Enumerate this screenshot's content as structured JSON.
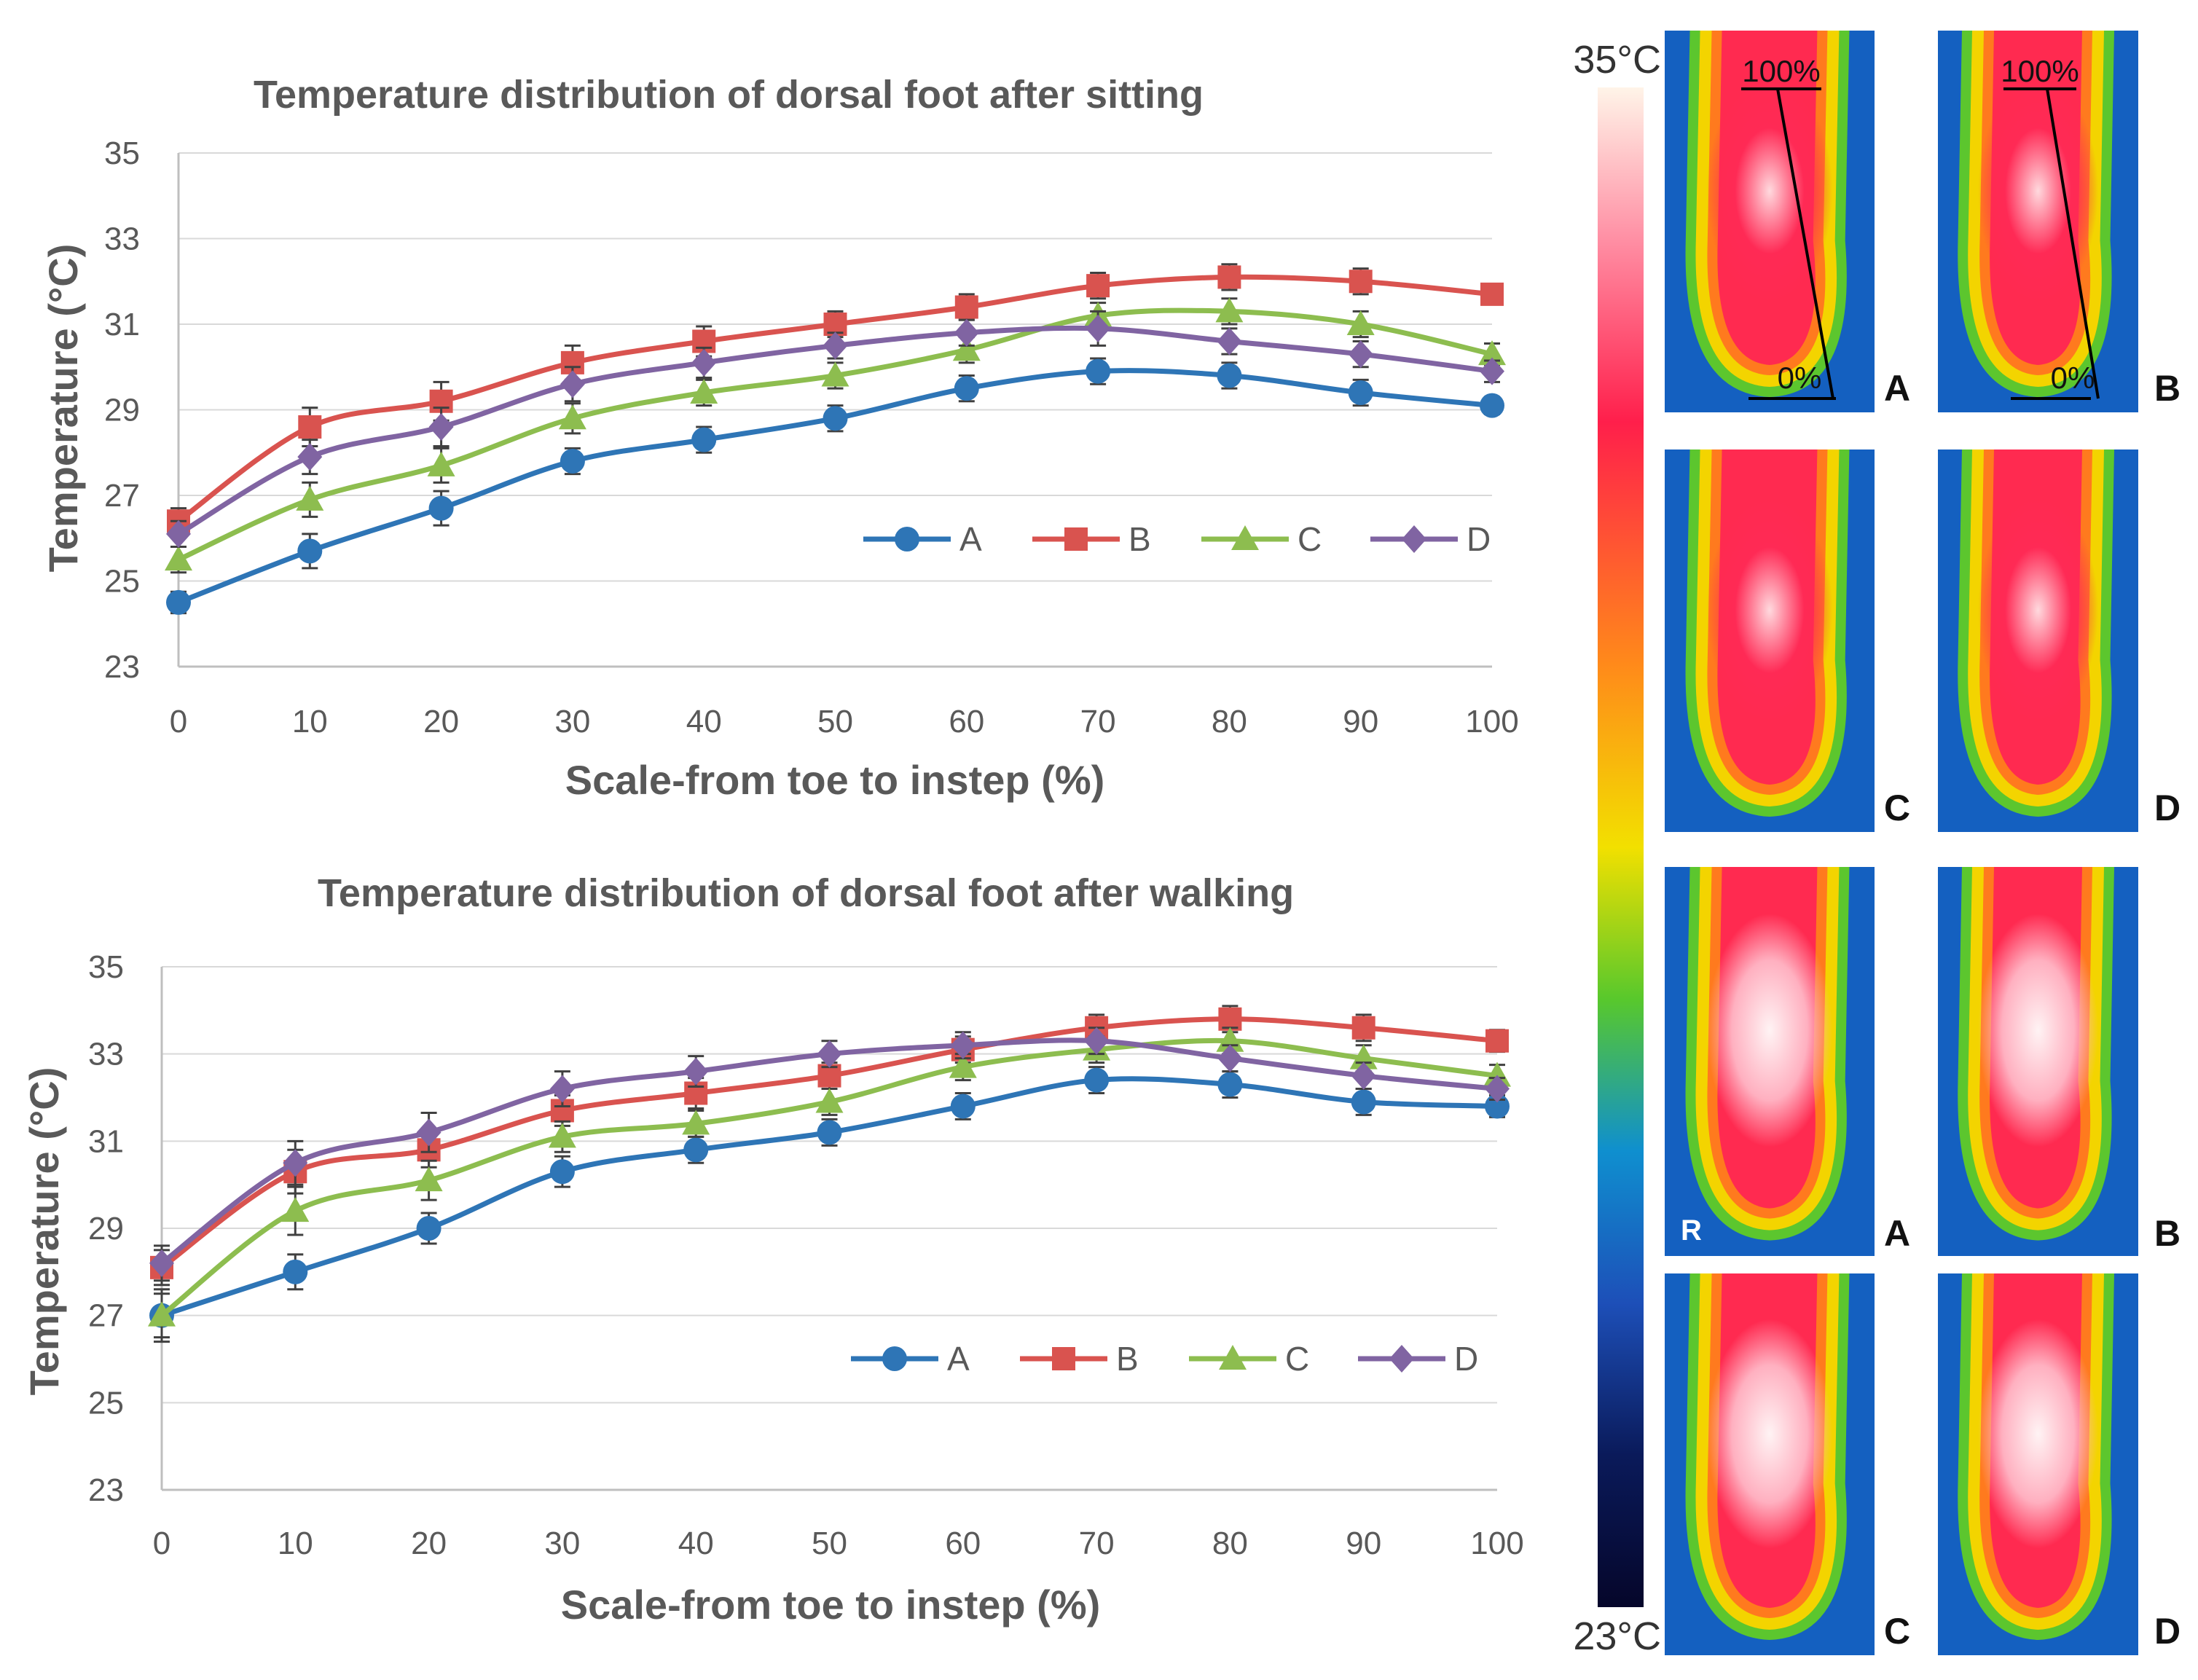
{
  "chart_data": [
    {
      "type": "line",
      "title": "Temperature distribution of dorsal foot after sitting",
      "xlabel": "Scale-from toe to instep (%)",
      "ylabel": "Temperature (°C)",
      "x": [
        0,
        10,
        20,
        30,
        40,
        50,
        60,
        70,
        80,
        90,
        100
      ],
      "xlim": [
        0,
        100
      ],
      "ylim": [
        23,
        35
      ],
      "yticks": [
        23,
        25,
        27,
        29,
        31,
        33,
        35
      ],
      "grid": true,
      "legend_position": "lower-right",
      "series": [
        {
          "name": "A",
          "color": "#2E75B6",
          "marker": "circle",
          "values": [
            24.5,
            25.7,
            26.7,
            27.8,
            28.3,
            28.8,
            29.5,
            29.9,
            29.8,
            29.4,
            29.1
          ],
          "errors": [
            0.25,
            0.4,
            0.4,
            0.3,
            0.3,
            0.3,
            0.3,
            0.3,
            0.3,
            0.3,
            0.2
          ]
        },
        {
          "name": "B",
          "color": "#D9534F",
          "marker": "square",
          "values": [
            26.4,
            28.6,
            29.2,
            30.1,
            30.6,
            31.0,
            31.4,
            31.9,
            32.1,
            32.0,
            31.7
          ],
          "errors": [
            0.3,
            0.45,
            0.45,
            0.4,
            0.35,
            0.3,
            0.3,
            0.3,
            0.3,
            0.3,
            0.2
          ]
        },
        {
          "name": "C",
          "color": "#8DBD4F",
          "marker": "triangle",
          "values": [
            25.5,
            26.9,
            27.7,
            28.8,
            29.4,
            29.8,
            30.4,
            31.2,
            31.3,
            31.0,
            30.3
          ],
          "errors": [
            0.3,
            0.4,
            0.4,
            0.35,
            0.3,
            0.3,
            0.3,
            0.3,
            0.3,
            0.3,
            0.25
          ]
        },
        {
          "name": "D",
          "color": "#8064A2",
          "marker": "diamond",
          "values": [
            26.1,
            27.9,
            28.6,
            29.6,
            30.1,
            30.5,
            30.8,
            30.9,
            30.6,
            30.3,
            29.9
          ],
          "errors": [
            0.3,
            0.4,
            0.45,
            0.4,
            0.35,
            0.3,
            0.3,
            0.4,
            0.3,
            0.3,
            0.25
          ]
        }
      ]
    },
    {
      "type": "line",
      "title": "Temperature distribution of dorsal foot after walking",
      "xlabel": "Scale-from toe to instep (%)",
      "ylabel": "Temperature (°C)",
      "x": [
        0,
        10,
        20,
        30,
        40,
        50,
        60,
        70,
        80,
        90,
        100
      ],
      "xlim": [
        0,
        100
      ],
      "ylim": [
        23,
        35
      ],
      "yticks": [
        23,
        25,
        27,
        29,
        31,
        33,
        35
      ],
      "grid": true,
      "legend_position": "lower-right",
      "series": [
        {
          "name": "A",
          "color": "#2E75B6",
          "marker": "circle",
          "values": [
            27.0,
            28.0,
            29.0,
            30.3,
            30.8,
            31.2,
            31.8,
            32.4,
            32.3,
            31.9,
            31.8
          ],
          "errors": [
            0.6,
            0.4,
            0.35,
            0.35,
            0.3,
            0.3,
            0.3,
            0.3,
            0.3,
            0.3,
            0.25
          ]
        },
        {
          "name": "B",
          "color": "#D9534F",
          "marker": "square",
          "values": [
            28.1,
            30.3,
            30.8,
            31.7,
            32.1,
            32.5,
            33.1,
            33.6,
            33.8,
            33.6,
            33.3
          ],
          "errors": [
            0.4,
            0.5,
            0.4,
            0.35,
            0.35,
            0.3,
            0.3,
            0.3,
            0.3,
            0.3,
            0.25
          ]
        },
        {
          "name": "C",
          "color": "#8DBD4F",
          "marker": "triangle",
          "values": [
            27.0,
            29.4,
            30.1,
            31.1,
            31.4,
            31.9,
            32.7,
            33.1,
            33.3,
            32.9,
            32.5
          ],
          "errors": [
            0.5,
            0.55,
            0.45,
            0.35,
            0.3,
            0.3,
            0.3,
            0.3,
            0.3,
            0.3,
            0.25
          ]
        },
        {
          "name": "D",
          "color": "#8064A2",
          "marker": "diamond",
          "values": [
            28.2,
            30.5,
            31.2,
            32.2,
            32.6,
            33.0,
            33.2,
            33.3,
            32.9,
            32.5,
            32.2
          ],
          "errors": [
            0.4,
            0.5,
            0.45,
            0.4,
            0.35,
            0.3,
            0.3,
            0.3,
            0.3,
            0.3,
            0.25
          ]
        }
      ]
    }
  ],
  "thermal_panel": {
    "scale_max_label": "35°C",
    "scale_min_label": "23°C",
    "top_percent_label": "100%",
    "bottom_percent_label": "0%",
    "panels": [
      {
        "letter": "A",
        "state": "sitting"
      },
      {
        "letter": "B",
        "state": "sitting"
      },
      {
        "letter": "C",
        "state": "sitting"
      },
      {
        "letter": "D",
        "state": "sitting"
      },
      {
        "letter": "A",
        "state": "walking"
      },
      {
        "letter": "B",
        "state": "walking"
      },
      {
        "letter": "C",
        "state": "walking"
      },
      {
        "letter": "D",
        "state": "walking"
      }
    ],
    "camera_mark": "R"
  }
}
